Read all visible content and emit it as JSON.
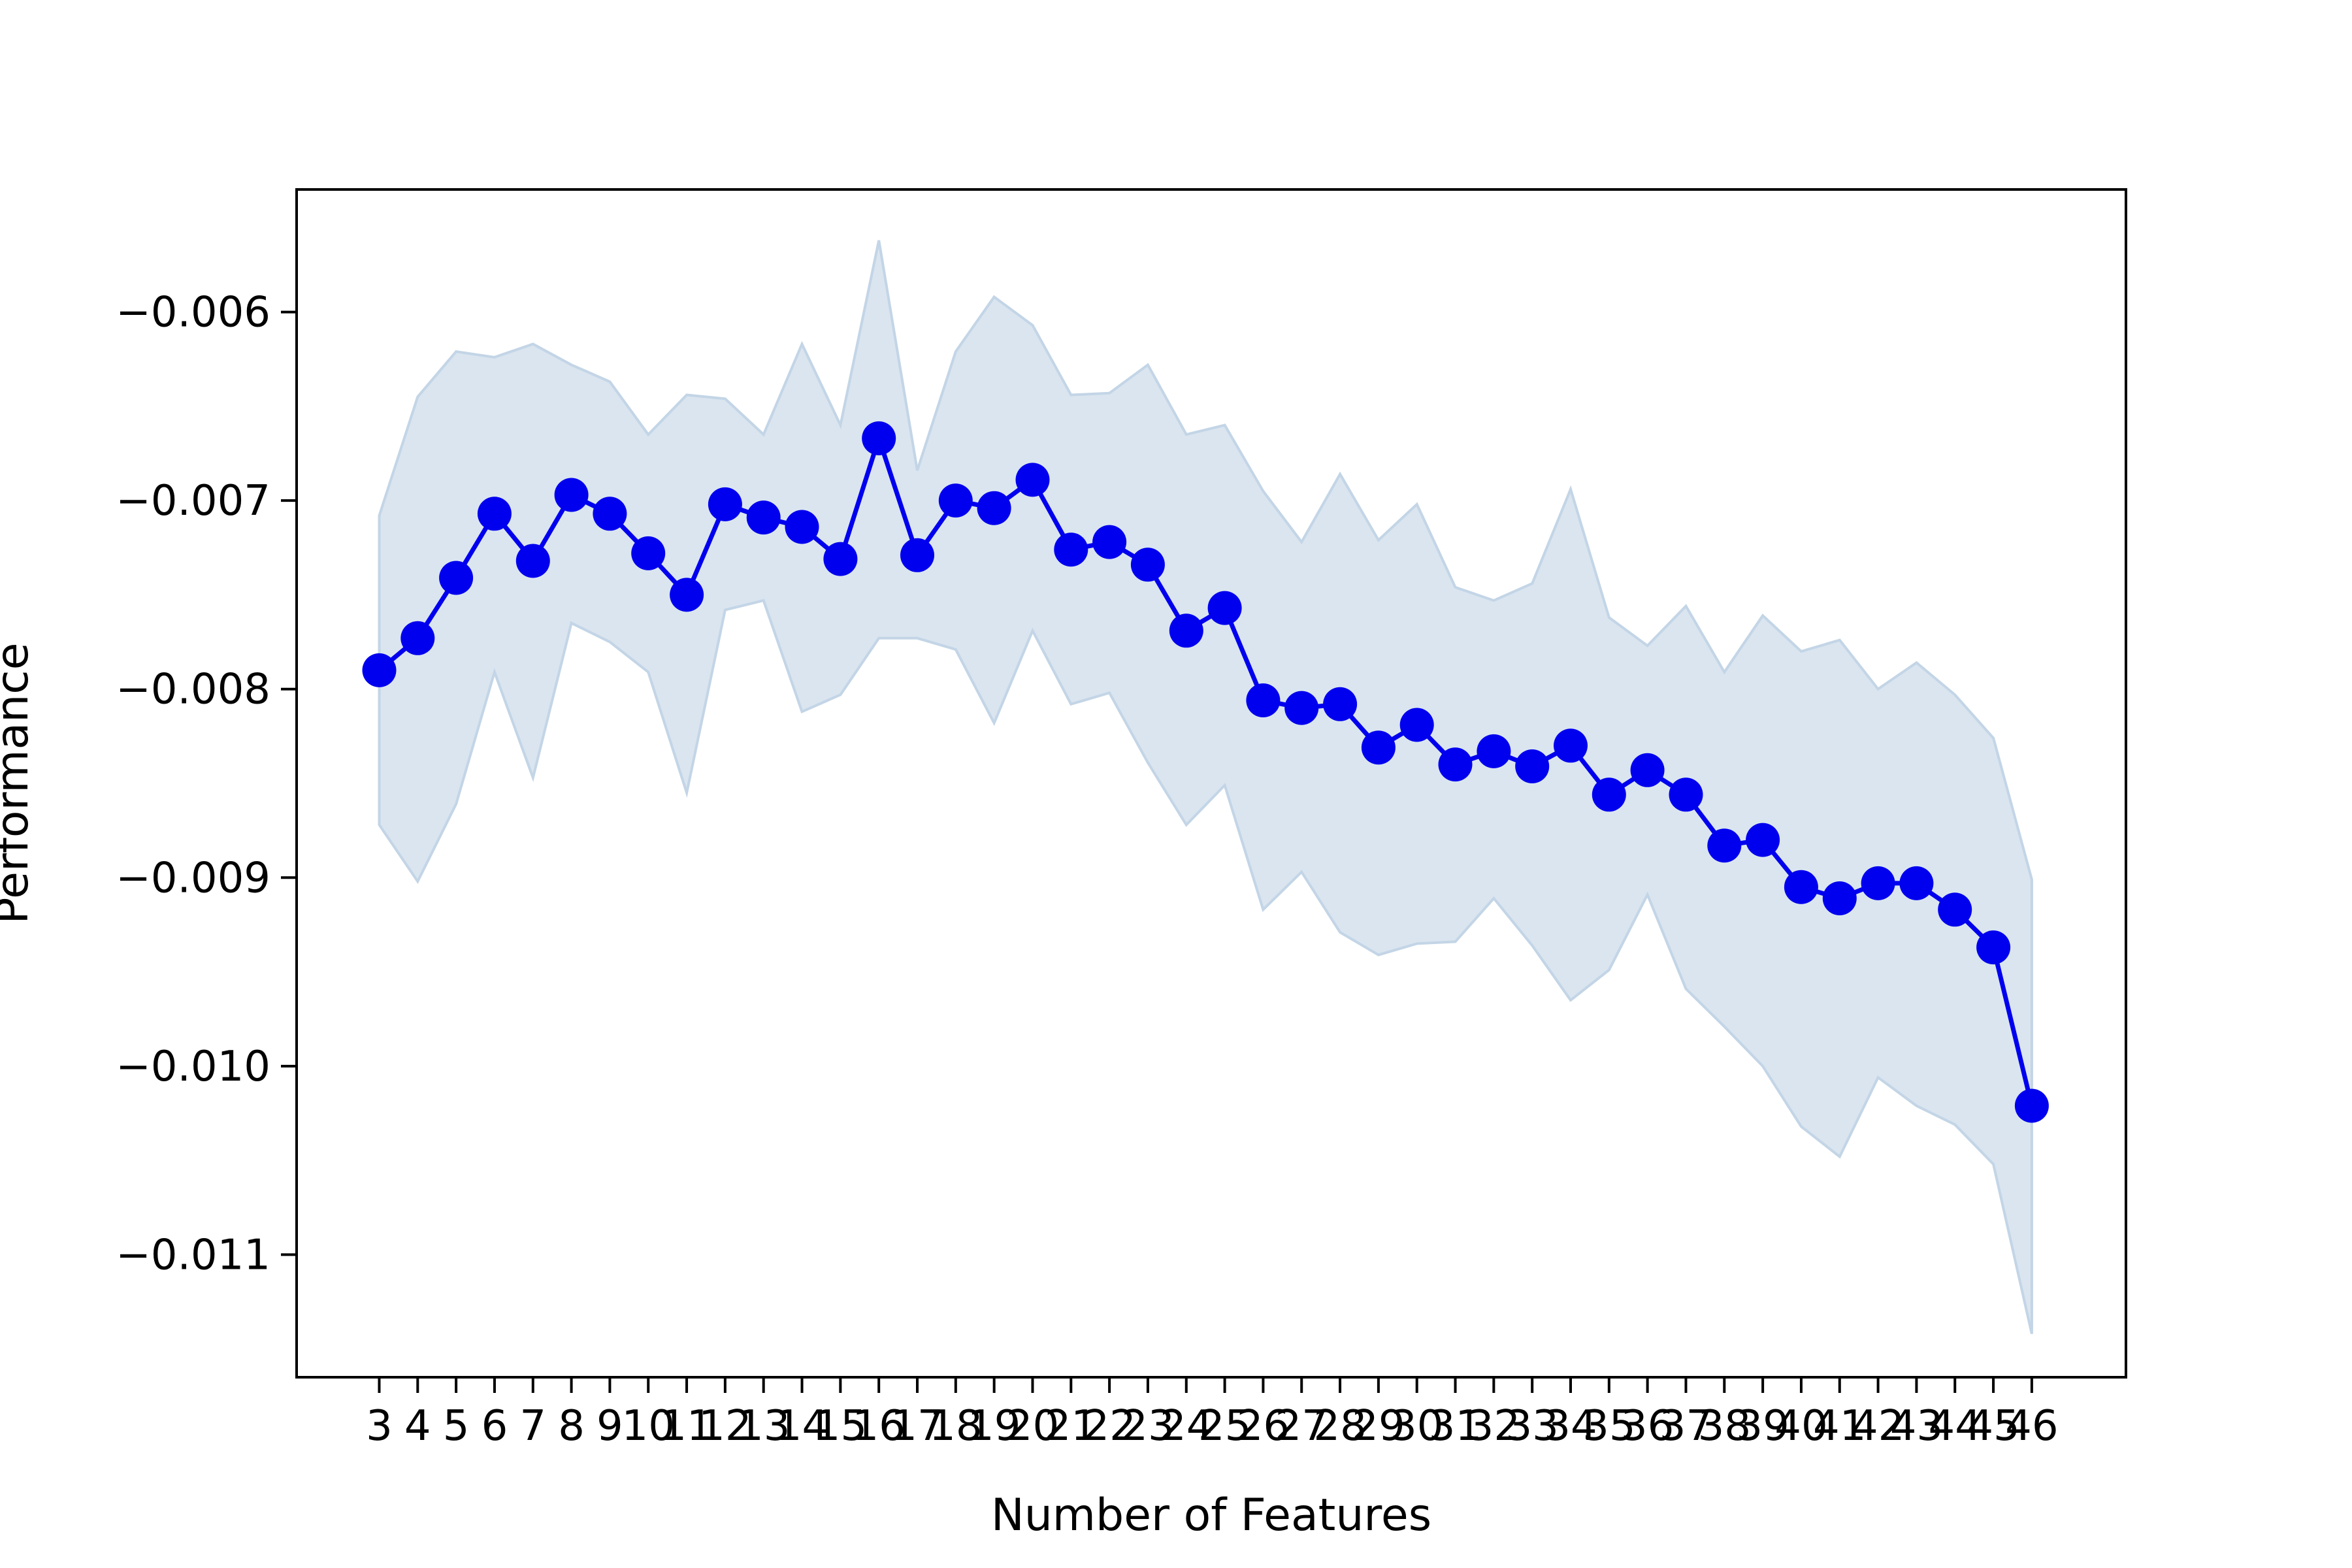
{
  "chart_data": {
    "type": "line",
    "title": "",
    "xlabel": "Number of Features",
    "ylabel": "Performance",
    "grid": false,
    "legend": "none",
    "xlim": [
      0.85,
      48.45
    ],
    "ylim": [
      -0.01165,
      -0.00535
    ],
    "x_ticks": [
      3,
      4,
      5,
      6,
      7,
      8,
      9,
      10,
      11,
      12,
      13,
      14,
      15,
      16,
      17,
      18,
      19,
      20,
      21,
      22,
      23,
      24,
      25,
      26,
      27,
      28,
      29,
      30,
      31,
      32,
      33,
      34,
      35,
      36,
      37,
      38,
      39,
      40,
      41,
      42,
      43,
      44,
      45,
      46
    ],
    "x_tick_labels": [
      "3",
      "4",
      "5",
      "6",
      "7",
      "8",
      "9",
      "10",
      "11",
      "12",
      "13",
      "14",
      "15",
      "16",
      "17",
      "18",
      "19",
      "20",
      "21",
      "22",
      "23",
      "24",
      "25",
      "26",
      "27",
      "28",
      "29",
      "30",
      "31",
      "32",
      "33",
      "34",
      "35",
      "36",
      "37",
      "38",
      "39",
      "40",
      "41",
      "42",
      "43",
      "44",
      "45",
      "46"
    ],
    "y_ticks": [
      -0.011,
      -0.01,
      -0.009,
      -0.008,
      -0.007,
      -0.006
    ],
    "y_tick_labels": [
      "−0.011",
      "−0.010",
      "−0.009",
      "−0.008",
      "−0.007",
      "−0.006"
    ],
    "x": [
      3,
      4,
      5,
      6,
      7,
      8,
      9,
      10,
      11,
      12,
      13,
      14,
      15,
      16,
      17,
      18,
      19,
      20,
      21,
      22,
      23,
      24,
      25,
      26,
      27,
      28,
      29,
      30,
      31,
      32,
      33,
      34,
      35,
      36,
      37,
      38,
      39,
      40,
      41,
      42,
      43,
      44,
      45,
      46
    ],
    "series": [
      {
        "values": [
          -0.0079,
          -0.00773,
          -0.00741,
          -0.00707,
          -0.00732,
          -0.00697,
          -0.00707,
          -0.00728,
          -0.0075,
          -0.00702,
          -0.00709,
          -0.00714,
          -0.00731,
          -0.00667,
          -0.00729,
          -0.007,
          -0.00704,
          -0.00689,
          -0.00726,
          -0.00722,
          -0.00734,
          -0.00769,
          -0.00757,
          -0.00806,
          -0.0081,
          -0.00808,
          -0.00831,
          -0.00819,
          -0.0084,
          -0.00833,
          -0.00841,
          -0.0083,
          -0.00856,
          -0.00843,
          -0.00856,
          -0.00883,
          -0.0088,
          -0.00905,
          -0.00911,
          -0.00903,
          -0.00903,
          -0.00917,
          -0.00937,
          -0.01021
        ],
        "upper": [
          -0.00708,
          -0.00645,
          -0.00621,
          -0.00624,
          -0.00617,
          -0.00628,
          -0.00637,
          -0.00665,
          -0.00644,
          -0.00646,
          -0.00665,
          -0.00617,
          -0.0066,
          -0.00562,
          -0.00684,
          -0.00621,
          -0.00592,
          -0.00607,
          -0.00644,
          -0.00643,
          -0.00628,
          -0.00665,
          -0.0066,
          -0.00695,
          -0.00722,
          -0.00686,
          -0.00721,
          -0.00702,
          -0.00746,
          -0.00753,
          -0.00744,
          -0.00694,
          -0.00762,
          -0.00777,
          -0.00756,
          -0.00791,
          -0.00761,
          -0.0078,
          -0.00774,
          -0.008,
          -0.00786,
          -0.00803,
          -0.00826,
          -0.00901
        ],
        "lower": [
          -0.00872,
          -0.00902,
          -0.00861,
          -0.00791,
          -0.00847,
          -0.00765,
          -0.00775,
          -0.00791,
          -0.00855,
          -0.00758,
          -0.00753,
          -0.00812,
          -0.00803,
          -0.00773,
          -0.00773,
          -0.00779,
          -0.00818,
          -0.00769,
          -0.00808,
          -0.00802,
          -0.00839,
          -0.00872,
          -0.00851,
          -0.00917,
          -0.00897,
          -0.00929,
          -0.00941,
          -0.00935,
          -0.00934,
          -0.00911,
          -0.00936,
          -0.00965,
          -0.00949,
          -0.00909,
          -0.00959,
          -0.00979,
          -0.01,
          -0.01032,
          -0.01048,
          -0.01006,
          -0.01021,
          -0.01031,
          -0.01052,
          -0.01142
        ]
      }
    ],
    "colors": {
      "line": "#0000ee",
      "marker": "#0000ee",
      "band_fill": "#dae5f0",
      "band_edge": "#c3d5e6"
    }
  }
}
